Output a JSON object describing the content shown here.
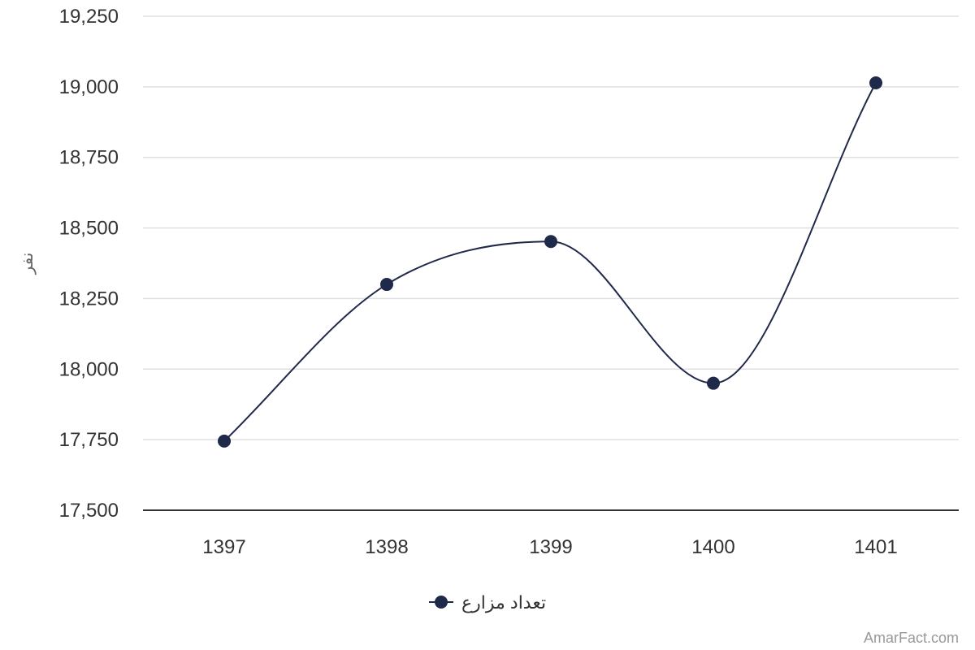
{
  "chart_data": {
    "type": "line",
    "title": "",
    "xlabel": "",
    "ylabel": "نفر",
    "categories": [
      "1397",
      "1398",
      "1399",
      "1400",
      "1401"
    ],
    "series": [
      {
        "name": "تعداد مزارع",
        "values": [
          17745,
          18300,
          18452,
          17950,
          19014
        ]
      }
    ],
    "ylim": [
      17500,
      19250
    ],
    "yticks": [
      17500,
      17750,
      18000,
      18250,
      18500,
      18750,
      19000,
      19250
    ],
    "ytick_labels": [
      "17,500",
      "17,750",
      "18,000",
      "18,250",
      "18,500",
      "18,750",
      "19,000",
      "19,250"
    ],
    "grid": true,
    "smooth": true,
    "legend_position": "bottom-center",
    "line_color": "#1f2a4a",
    "grid_color": "#e0e0e0",
    "axis_color": "#333333"
  },
  "credit": "AmarFact.com"
}
